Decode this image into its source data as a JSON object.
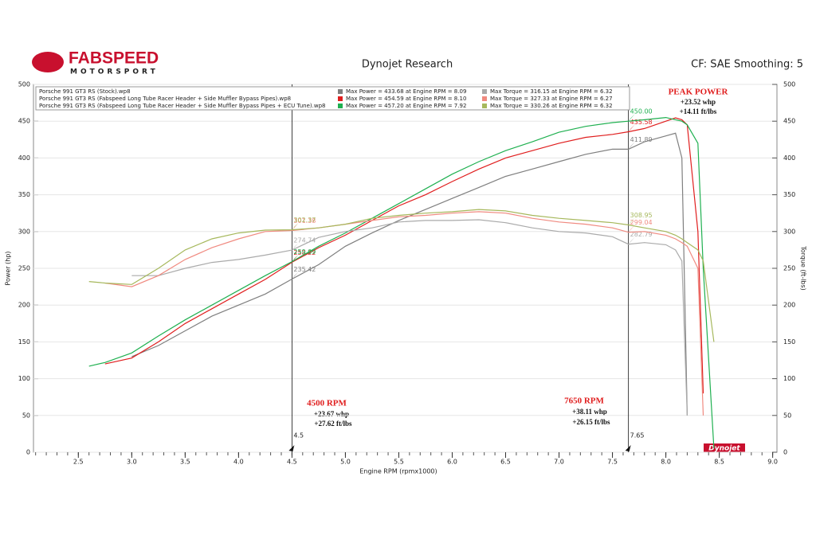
{
  "chart_data": {
    "type": "line",
    "brand": {
      "name": "FABSPEED",
      "tagline": "MOTORSPORT"
    },
    "title": "Dynojet Research",
    "subtitle": "CF: SAE Smoothing: 5",
    "badge": "Dynojet",
    "x_label": "Engine RPM (rpmx1000)",
    "y_label": "Power (hp)",
    "y2_label": "Torque (ft-lbs)",
    "runs": [
      "Porsche 991 GT3 RS (Stock).wp8",
      "Porsche 991 GT3 RS (Fabspeed Long Tube Racer Header + Side Muffler Bypass Pipes).wp8",
      "Porsche 991 GT3 RS (Fabspeed Long Tube Racer Header + Side Muffler Bypass Pipes + ECU Tune).wp8"
    ],
    "x": [
      2.6,
      2.75,
      3.0,
      3.25,
      3.5,
      3.75,
      4.0,
      4.25,
      4.5,
      4.75,
      5.0,
      5.25,
      5.5,
      5.75,
      6.0,
      6.25,
      6.5,
      6.75,
      7.0,
      7.25,
      7.5,
      7.65,
      7.8,
      8.0,
      8.09,
      8.15,
      8.2,
      8.3,
      8.35,
      8.45
    ],
    "series": [
      {
        "name": "Max Power = 433.68 at Engine RPM = 8.09",
        "color": "#7f7f7f",
        "axis": "y",
        "values": [
          null,
          null,
          130,
          145,
          165,
          185,
          200,
          215,
          235.42,
          255,
          280,
          298,
          315,
          330,
          345,
          360,
          375,
          385,
          395,
          405,
          412,
          411.89,
          422,
          430,
          433.68,
          400,
          50,
          null,
          null,
          null
        ]
      },
      {
        "name": "Max Power = 454.59 at Engine RPM = 8.10",
        "color": "#e01e1e",
        "axis": "y",
        "values": [
          null,
          120,
          128,
          150,
          175,
          195,
          215,
          235,
          258.22,
          278,
          295,
          315,
          335,
          350,
          368,
          385,
          400,
          410,
          420,
          428,
          432,
          435.58,
          440,
          450,
          454.59,
          452,
          445,
          300,
          80,
          null
        ]
      },
      {
        "name": "Max Power = 457.20 at Engine RPM = 7.92",
        "color": "#1fb050",
        "axis": "y",
        "value_labels": [
          null,
          null,
          null,
          null,
          null,
          null,
          null,
          null,
          null,
          null,
          null,
          null,
          null,
          null,
          null,
          null,
          null,
          null,
          null,
          null,
          null,
          "450.00",
          null,
          null,
          null,
          null,
          null,
          null,
          null,
          null
        ],
        "values": [
          117,
          122,
          135,
          158,
          180,
          200,
          220,
          240,
          259.09,
          280,
          298,
          318,
          338,
          358,
          378,
          395,
          410,
          422,
          435,
          443,
          448,
          450,
          452,
          455,
          452,
          450,
          445,
          420,
          250,
          5
        ]
      },
      {
        "name": "Max Torque = 316.15 at Engine RPM = 6.32",
        "color": "#aaaaaa",
        "axis": "y2",
        "values": [
          null,
          null,
          240,
          240,
          250,
          258,
          262,
          268,
          274.74,
          292,
          300,
          305,
          313,
          315,
          315,
          316,
          312,
          305,
          300,
          298,
          293,
          282.79,
          285,
          282,
          275,
          260,
          50,
          null,
          null,
          null
        ]
      },
      {
        "name": "Max Torque = 327.33 at Engine RPM = 6.27",
        "color": "#f08a80",
        "axis": "y2",
        "values": [
          null,
          230,
          225,
          240,
          262,
          278,
          290,
          300,
          301.38,
          305,
          310,
          315,
          320,
          322,
          325,
          327,
          325,
          318,
          313,
          310,
          305,
          299.04,
          300,
          295,
          290,
          285,
          280,
          250,
          50,
          null
        ]
      },
      {
        "name": "Max Torque = 330.26 at Engine RPM = 6.32",
        "color": "#a6b85c",
        "axis": "y2",
        "values": [
          232,
          230,
          228,
          250,
          275,
          290,
          298,
          302,
          302.37,
          305,
          310,
          318,
          322,
          325,
          327,
          330,
          328,
          322,
          318,
          315,
          312,
          308.95,
          305,
          300,
          295,
          290,
          285,
          275,
          260,
          150
        ]
      }
    ],
    "cursors": [
      4.5,
      7.65
    ],
    "annotations": [
      {
        "title": "PEAK POWER",
        "lines": [
          "+23.52 whp",
          "+14.11 ft/lbs"
        ]
      },
      {
        "title": "4500 RPM",
        "lines": [
          "+23.67 whp",
          "+27.62 ft/lbs"
        ]
      },
      {
        "title": "7650 RPM",
        "lines": [
          "+38.11 whp",
          "+26.15 ft/lbs"
        ]
      }
    ],
    "xlim": [
      2.08,
      9.04
    ],
    "xticks": [
      2.5,
      {
        "value": 3,
        "label": "3.0"
      },
      3.5,
      {
        "value": 4,
        "label": "4.0"
      },
      4.5,
      {
        "value": 5,
        "label": "5.0"
      },
      5.5,
      {
        "value": 6,
        "label": "6.0"
      },
      6.5,
      {
        "value": 7,
        "label": "7.0"
      },
      7.5,
      {
        "value": 8,
        "label": "8.0"
      },
      8.5,
      {
        "value": 9,
        "label": "9.0"
      }
    ],
    "ylim": [
      0,
      500
    ],
    "yticks": [
      0,
      50,
      100,
      150,
      200,
      250,
      300,
      350,
      400,
      450,
      500
    ],
    "y2lim": [
      0,
      500
    ],
    "y2ticks": [
      0,
      50,
      100,
      150,
      200,
      250,
      300,
      350,
      400,
      450,
      500
    ],
    "grid": true
  }
}
